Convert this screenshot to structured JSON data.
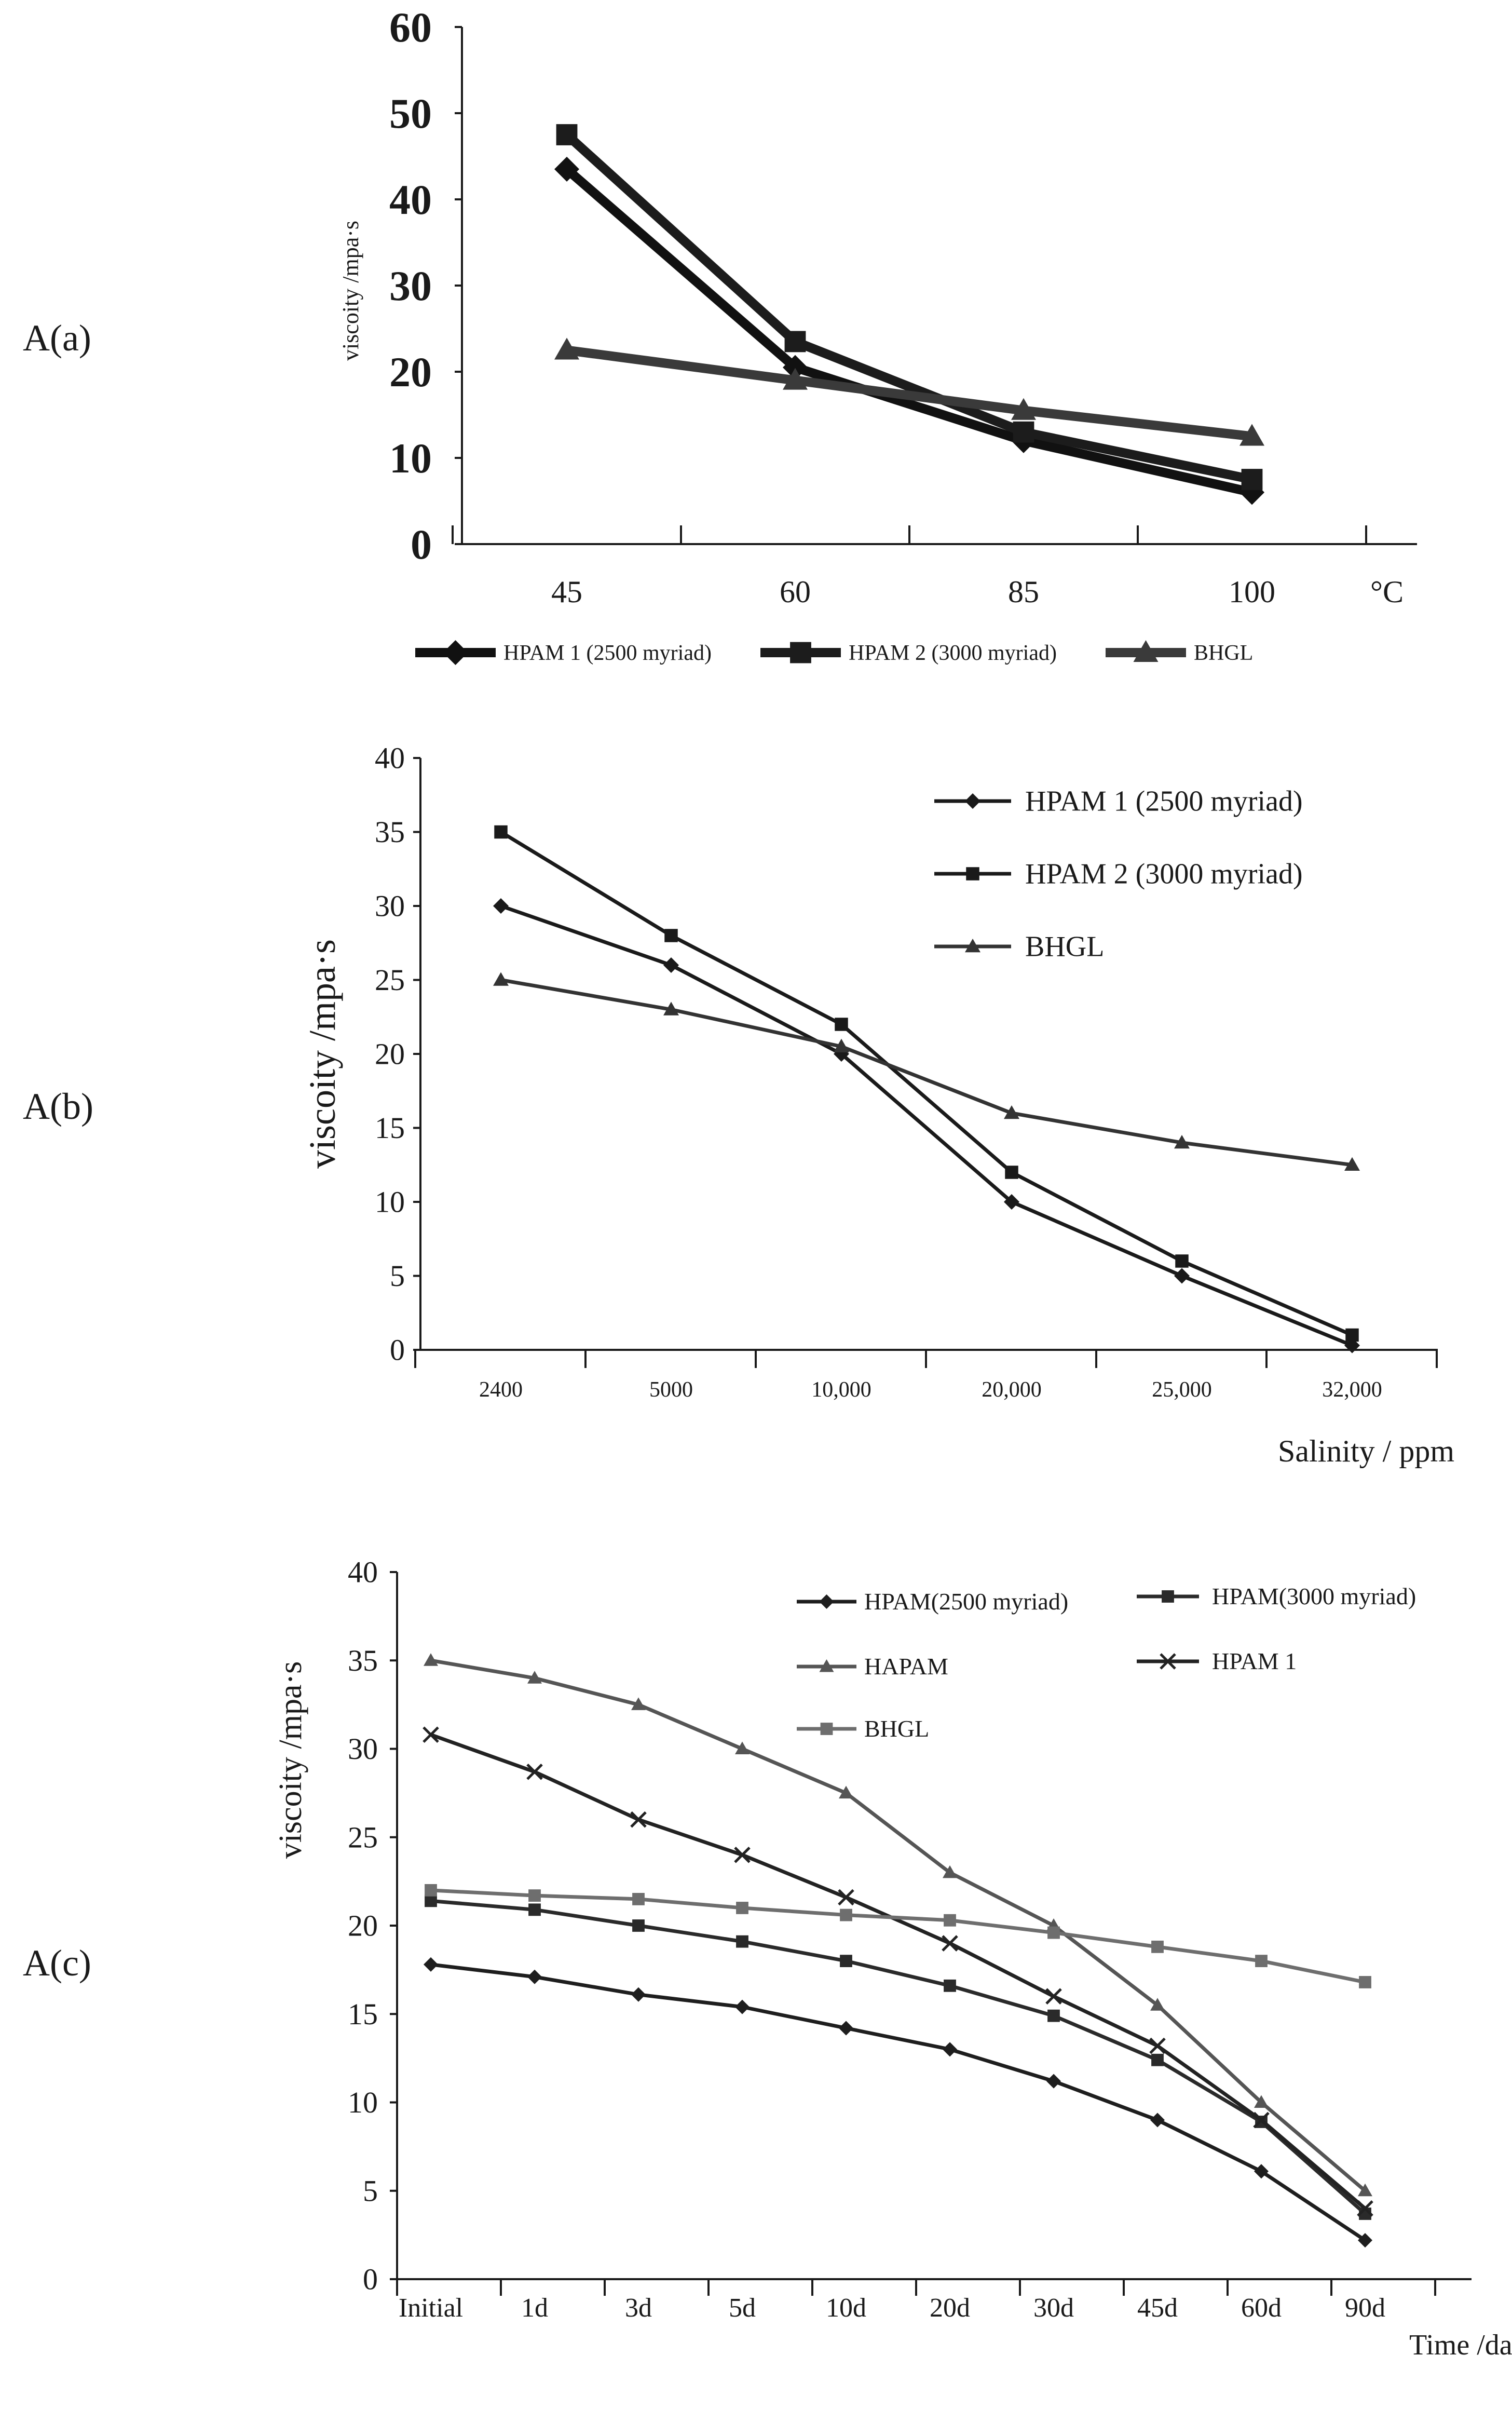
{
  "figure": {
    "panel_labels": [
      "A(a)",
      "A(b)",
      "A(c)"
    ]
  },
  "chart_data": [
    {
      "type": "line",
      "panel": "A(a)",
      "xlabel": "°C",
      "ylabel": "viscoity /mpa·s",
      "categories": [
        "45",
        "60",
        "85",
        "100"
      ],
      "ylim": [
        0,
        60
      ],
      "yticks": [
        "0",
        "10",
        "20",
        "30",
        "40",
        "50",
        "60"
      ],
      "legend_position": "bottom",
      "series": [
        {
          "name": "HPAM 1 (2500 myriad)",
          "marker": "diamond",
          "color": "#111111",
          "values": [
            43.5,
            20.5,
            12,
            6
          ]
        },
        {
          "name": "HPAM 2 (3000 myriad)",
          "marker": "square",
          "color": "#1c1c1c",
          "values": [
            47.5,
            23.5,
            13,
            7.5
          ]
        },
        {
          "name": "BHGL",
          "marker": "triangle",
          "color": "#3a3a3a",
          "values": [
            22.5,
            19,
            15.5,
            12.5
          ]
        }
      ]
    },
    {
      "type": "line",
      "panel": "A(b)",
      "xlabel": "Salinity / ppm",
      "ylabel": "viscoity /mpa·s",
      "categories": [
        "2400",
        "5000",
        "10,000",
        "20,000",
        "25,000",
        "32,000"
      ],
      "ylim": [
        0,
        40
      ],
      "yticks": [
        "0",
        "5",
        "10",
        "15",
        "20",
        "25",
        "30",
        "35",
        "40"
      ],
      "legend_position": "top-right",
      "series": [
        {
          "name": "HPAM 1 (2500 myriad)",
          "marker": "diamond",
          "color": "#1a1a1a",
          "values": [
            30,
            26,
            20,
            10,
            5,
            0.3
          ]
        },
        {
          "name": "HPAM 2 (3000 myriad)",
          "marker": "square",
          "color": "#1a1a1a",
          "values": [
            35,
            28,
            22,
            12,
            6,
            1
          ]
        },
        {
          "name": "BHGL",
          "marker": "triangle",
          "color": "#333333",
          "values": [
            25,
            23,
            20.5,
            16,
            14,
            12.5
          ]
        }
      ]
    },
    {
      "type": "line",
      "panel": "A(c)",
      "xlabel": "Time /day",
      "ylabel": "viscoity /mpa·s",
      "categories": [
        "Initial",
        "1d",
        "3d",
        "5d",
        "10d",
        "20d",
        "30d",
        "45d",
        "60d",
        "90d"
      ],
      "ylim": [
        0,
        40
      ],
      "yticks": [
        "0",
        "5",
        "10",
        "15",
        "20",
        "25",
        "30",
        "35",
        "40"
      ],
      "legend_position": "top-right",
      "series": [
        {
          "name": "HPAM(2500 myriad)",
          "marker": "diamond",
          "color": "#1e1e1e",
          "values": [
            17.8,
            17.1,
            16.1,
            15.4,
            14.2,
            13,
            11.2,
            9,
            6.1,
            2.2
          ]
        },
        {
          "name": "HPAM(3000 myriad)",
          "marker": "square",
          "color": "#2a2a2a",
          "values": [
            21.4,
            20.9,
            20,
            19.1,
            18,
            16.6,
            14.9,
            12.4,
            8.9,
            3.7
          ]
        },
        {
          "name": "HAPAM",
          "marker": "triangle",
          "color": "#555555",
          "values": [
            35,
            34,
            32.5,
            30,
            27.5,
            23,
            20,
            15.5,
            10,
            5
          ]
        },
        {
          "name": "HPAM 1",
          "marker": "x",
          "color": "#222222",
          "values": [
            30.8,
            28.7,
            26,
            24,
            21.6,
            19,
            16,
            13.2,
            9,
            4
          ]
        },
        {
          "name": "BHGL",
          "marker": "square",
          "color": "#6e6e6e",
          "values": [
            22,
            21.7,
            21.5,
            21,
            20.6,
            20.3,
            19.6,
            18.8,
            18,
            16.8
          ]
        }
      ]
    }
  ]
}
